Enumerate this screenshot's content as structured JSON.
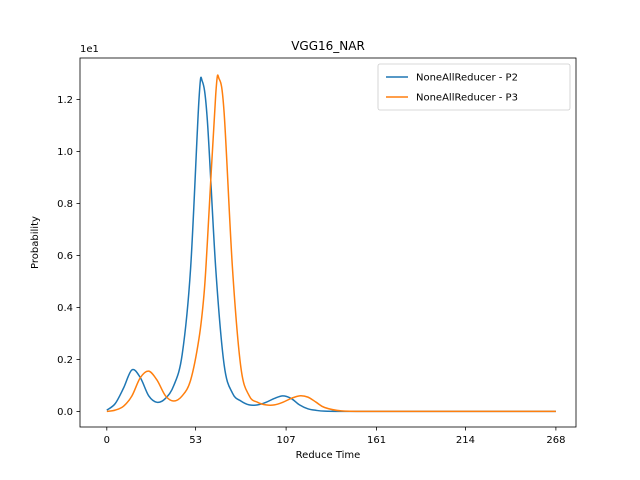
{
  "chart_data": {
    "type": "line",
    "title": "VGG16_NAR",
    "xlabel": "Reduce Time",
    "ylabel": "Probability",
    "y_offset_label": "1e1",
    "xlim": [
      -16,
      280
    ],
    "ylim": [
      -0.06,
      1.36
    ],
    "xticks": [
      0,
      53,
      107,
      161,
      214,
      268
    ],
    "xtick_labels": [
      "0",
      "53",
      "107",
      "161",
      "214",
      "268"
    ],
    "yticks": [
      0.0,
      0.2,
      0.4,
      0.6,
      0.8,
      1.0,
      1.2
    ],
    "ytick_labels": [
      "0.0",
      "0.2",
      "0.4",
      "0.6",
      "0.8",
      "1.0",
      "1.2"
    ],
    "legend_position": "upper right",
    "series": [
      {
        "name": "NoneAllReducer - P2",
        "color": "#1f77b4",
        "x": [
          0,
          5,
          10,
          15,
          20,
          25,
          30,
          35,
          40,
          45,
          50,
          55,
          57,
          60,
          65,
          70,
          75,
          80,
          85,
          90,
          95,
          100,
          105,
          110,
          115,
          120,
          125,
          130,
          140,
          160,
          200,
          240,
          268
        ],
        "y": [
          0.005,
          0.03,
          0.09,
          0.16,
          0.13,
          0.06,
          0.035,
          0.05,
          0.1,
          0.22,
          0.55,
          1.2,
          1.27,
          1.12,
          0.55,
          0.18,
          0.07,
          0.04,
          0.025,
          0.025,
          0.035,
          0.05,
          0.06,
          0.05,
          0.025,
          0.01,
          0.004,
          0.001,
          0.0,
          0.0,
          0.0,
          0.0,
          0.0
        ]
      },
      {
        "name": "NoneAllReducer - P3",
        "color": "#ff7f0e",
        "x": [
          0,
          5,
          10,
          15,
          20,
          25,
          30,
          35,
          40,
          45,
          50,
          55,
          58,
          60,
          65,
          67,
          70,
          75,
          80,
          85,
          90,
          95,
          100,
          105,
          110,
          115,
          120,
          125,
          130,
          140,
          160,
          200,
          240,
          268
        ],
        "y": [
          0.0,
          0.005,
          0.02,
          0.06,
          0.13,
          0.155,
          0.12,
          0.06,
          0.04,
          0.06,
          0.12,
          0.28,
          0.45,
          0.65,
          1.22,
          1.28,
          1.15,
          0.55,
          0.17,
          0.06,
          0.035,
          0.025,
          0.025,
          0.035,
          0.05,
          0.06,
          0.055,
          0.035,
          0.015,
          0.002,
          0.0,
          0.0,
          0.0,
          0.0
        ]
      }
    ]
  }
}
